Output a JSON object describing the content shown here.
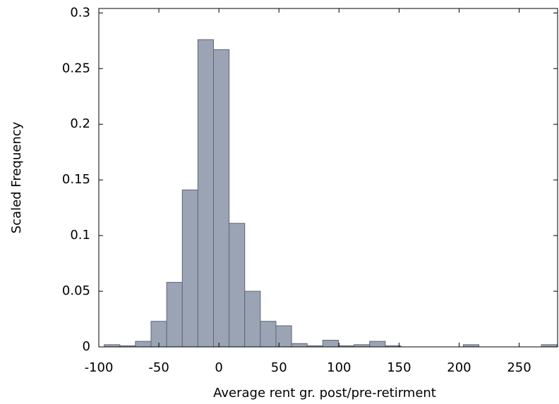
{
  "chart_data": {
    "type": "histogram",
    "xlabel": "Average rent gr. post/pre-retirment",
    "ylabel": "Scaled Frequency",
    "bins": [
      -95.5,
      -82.5,
      -69.5,
      -56.5,
      -43.5,
      -30.5,
      -17.5,
      -4.5,
      8.5,
      21.5,
      34.5,
      47.5,
      60.5,
      73.5,
      86.5,
      99.5,
      112.5,
      125.5,
      138.5,
      151.5,
      164.5,
      177.5,
      190.5,
      203.5,
      216.5,
      229.5,
      242.5,
      255.5,
      268.5,
      281.5
    ],
    "values": [
      0.002,
      0.001,
      0.005,
      0.023,
      0.058,
      0.141,
      0.276,
      0.267,
      0.111,
      0.05,
      0.023,
      0.019,
      0.003,
      0.001,
      0.006,
      0.001,
      0.002,
      0.005,
      0.001,
      0,
      0,
      0,
      0,
      0.002,
      0,
      0,
      0,
      0,
      0.002
    ],
    "color": "#9aa4b5",
    "xlim": [
      -100,
      282
    ],
    "xticks": [
      -100,
      -50,
      0,
      50,
      100,
      150,
      200,
      250
    ],
    "ylim": [
      0,
      0.304
    ],
    "yticks": [
      0,
      0.05,
      0.1,
      0.15,
      0.2,
      0.25,
      0.3
    ]
  }
}
